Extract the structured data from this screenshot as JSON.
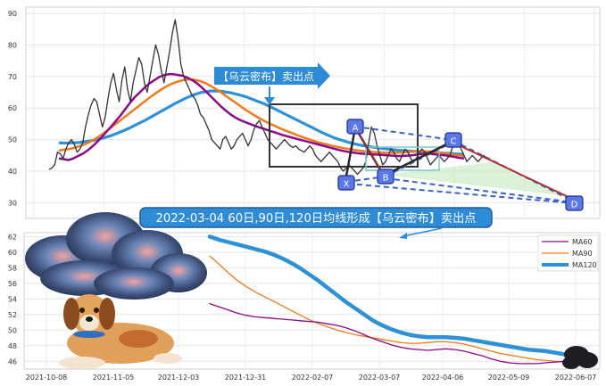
{
  "annotations": {
    "arrow_label": "【乌云密布】卖出点",
    "banner": "2022-03-04 60日,90日,120日均线形成【乌云密布】卖出点",
    "points": [
      "A",
      "B",
      "C",
      "D",
      "X"
    ]
  },
  "colors": {
    "price": "#333333",
    "ma_short_purple": "#8b0a8b",
    "ma_mid_orange": "#f07a1a",
    "ma_long_blue": "#2e91d6",
    "ma60": "#8b0a8b",
    "ma90": "#f07a1a",
    "ma120": "#2e91d6",
    "accent_box": "#2a4fd0",
    "banner_bg": "#2e8bd6",
    "dashed": "#3a63c8",
    "wedge_fill": "#bfe8b8"
  },
  "chart_data": [
    {
      "type": "line",
      "ylim": [
        25,
        92
      ],
      "yticks": [
        "30",
        "40",
        "50",
        "60",
        "70",
        "80",
        "90"
      ],
      "series": [
        {
          "values": [
            40.5,
            41,
            42,
            46,
            45.5,
            44,
            47,
            49,
            50,
            48.5,
            46,
            47,
            49,
            54,
            58,
            61,
            63,
            62,
            58,
            54,
            57,
            63,
            68,
            71,
            66,
            62,
            69,
            73,
            66,
            62,
            68,
            72,
            76,
            74,
            68,
            65,
            70,
            75,
            80,
            77,
            72,
            68,
            73,
            78,
            84,
            88,
            82,
            74,
            70,
            68,
            66,
            64,
            63,
            61,
            58,
            57,
            55,
            53,
            50,
            49,
            48,
            47,
            50,
            51,
            49,
            47,
            48,
            50,
            51,
            52,
            50,
            48,
            50,
            53,
            55,
            56,
            54,
            52,
            50,
            49,
            48,
            47,
            48,
            49,
            50,
            49,
            48,
            47.5,
            48,
            47,
            46.5,
            46,
            47,
            48,
            47,
            45,
            44,
            43,
            44,
            45,
            46,
            45,
            44,
            43,
            41,
            40,
            41,
            42,
            41,
            40,
            39,
            40,
            41,
            43,
            49,
            54,
            52,
            48,
            45,
            42,
            43,
            45,
            47,
            46,
            44,
            43,
            45,
            47,
            46,
            44,
            43,
            44,
            46,
            47,
            46,
            44,
            42,
            43,
            44,
            45,
            44,
            43,
            44,
            45,
            48,
            50,
            49,
            47,
            45,
            43,
            44,
            45,
            44,
            43,
            44,
            45,
            44
          ]
        },
        {
          "values": [
            44,
            43.8,
            43.5,
            44,
            44.8,
            45.5,
            46.5,
            47.8,
            49.2,
            50.8,
            52.5,
            54.2,
            56,
            57.8,
            59.8,
            61.8,
            63.6,
            65,
            66.5,
            67.8,
            68.8,
            69.8,
            70.4,
            70.7,
            70.7,
            70.5,
            70.2,
            69.6,
            68.8,
            67.8,
            66.5,
            65,
            63.5,
            62,
            60.5,
            59.2,
            58,
            57,
            56.2,
            55.6,
            55,
            54.4,
            53.9,
            53.4,
            52.9,
            52.4,
            51.9,
            51.4,
            51,
            50.6,
            50.2,
            49.8,
            49.4,
            49,
            48.6,
            48.2,
            47.8,
            47.4,
            47,
            46.6,
            46.3,
            46,
            45.8,
            45.6,
            45.5,
            45.4,
            45.3,
            45.2,
            45.1,
            45,
            44.9,
            44.8,
            44.8,
            44.9,
            45,
            45.2,
            45.4,
            45.6,
            45.5,
            45.3,
            45.1,
            45,
            44.8,
            44.5,
            44.2,
            44
          ]
        },
        {
          "values": [
            46.5,
            46.8,
            47,
            47.3,
            47.8,
            48.3,
            49,
            49.8,
            50.8,
            51.8,
            53,
            54.2,
            55.4,
            56.6,
            57.8,
            59,
            60.2,
            61.4,
            62.6,
            63.8,
            64.9,
            65.9,
            66.8,
            67.6,
            68.2,
            68.7,
            69,
            69.1,
            68.9,
            68.5,
            67.9,
            67.1,
            66.2,
            65.2,
            64.1,
            63,
            61.9,
            60.8,
            59.7,
            58.7,
            57.7,
            56.8,
            56,
            55.2,
            54.5,
            53.8,
            53.1,
            52.5,
            51.9,
            51.3,
            50.7,
            50.2,
            49.7,
            49.2,
            48.8,
            48.4,
            48,
            47.7,
            47.4,
            47.1,
            46.8,
            46.6,
            46.4,
            46.2,
            46.1,
            46,
            45.9,
            45.8,
            45.8,
            45.8,
            45.9,
            46,
            46.1,
            46.2,
            46.3,
            46.3,
            46.2,
            46,
            45.8,
            45.6,
            45.4,
            45.2,
            45,
            44.8
          ]
        },
        {
          "values": [
            49,
            48.9,
            48.9,
            49,
            49.1,
            49.3,
            49.5,
            49.8,
            50.2,
            50.6,
            51.1,
            51.7,
            52.3,
            53,
            53.7,
            54.5,
            55.3,
            56.1,
            57,
            57.9,
            58.8,
            59.7,
            60.6,
            61.5,
            62.3,
            63.1,
            63.8,
            64.4,
            64.9,
            65.2,
            65.4,
            65.4,
            65.3,
            65.1,
            64.8,
            64.4,
            64,
            63.5,
            62.9,
            62.3,
            61.7,
            61,
            60.2,
            59.4,
            58.6,
            57.8,
            57,
            56.2,
            55.4,
            54.6,
            53.8,
            53,
            52.2,
            51.5,
            50.8,
            50.2,
            49.7,
            49.2,
            48.8,
            48.4,
            48.1,
            47.8,
            47.6,
            47.4,
            47.2,
            47,
            46.8,
            46.6,
            46.5,
            46.4,
            46.3,
            46.2,
            46.1,
            46,
            45.9,
            45.8,
            45.7,
            45.6,
            45.5,
            45.4,
            45.3
          ]
        }
      ]
    },
    {
      "type": "line",
      "ylim": [
        45,
        62.5
      ],
      "yticks": [
        "46",
        "48",
        "50",
        "52",
        "54",
        "56",
        "58",
        "60",
        "62"
      ],
      "xticks": [
        "2021-10-08",
        "2021-11-05",
        "2021-12-03",
        "2021-12-31",
        "2022-02-07",
        "2022-03-07",
        "2022-04-06",
        "2022-05-09",
        "2022-06-07"
      ],
      "legend_position": "top-right",
      "series": [
        {
          "name": "MA60",
          "values": [
            53.4,
            53,
            52.6,
            52.2,
            51.9,
            51.7,
            51.6,
            51.5,
            51.4,
            51.3,
            51.2,
            51.1,
            51,
            50.8,
            50.6,
            50.3,
            49.9,
            49.4,
            48.9,
            48.5,
            48.1,
            47.8,
            47.6,
            47.5,
            47.4,
            47.5,
            47.6,
            47.5,
            47.3,
            47,
            46.7,
            46.3,
            46,
            45.8,
            45.7,
            45.7,
            45.7,
            45.8,
            45.9,
            46
          ]
        },
        {
          "name": "MA90",
          "values": [
            59.5,
            58.5,
            57.4,
            56.4,
            55.6,
            54.9,
            54.3,
            53.7,
            53.1,
            52.5,
            51.9,
            51.3,
            50.8,
            50.4,
            50,
            49.7,
            49.4,
            49.2,
            49,
            48.8,
            48.6,
            48.4,
            48.3,
            48.3,
            48.4,
            48.5,
            48.5,
            48.4,
            48.2,
            47.9,
            47.6,
            47.3,
            47,
            46.8,
            46.6,
            46.4,
            46.2,
            46.1,
            46,
            45.9
          ]
        },
        {
          "name": "MA120",
          "values": [
            62,
            61.6,
            61.3,
            61,
            60.7,
            60.4,
            60.1,
            59.7,
            59.2,
            58.6,
            57.9,
            57.1,
            56.3,
            55.4,
            54.5,
            53.6,
            52.8,
            52,
            51.2,
            50.6,
            50.1,
            49.7,
            49.4,
            49.2,
            49.1,
            49.1,
            49.1,
            49,
            48.9,
            48.7,
            48.5,
            48.3,
            48.1,
            47.9,
            47.7,
            47.5,
            47.4,
            47.3,
            47.1,
            46.9
          ]
        }
      ]
    }
  ]
}
